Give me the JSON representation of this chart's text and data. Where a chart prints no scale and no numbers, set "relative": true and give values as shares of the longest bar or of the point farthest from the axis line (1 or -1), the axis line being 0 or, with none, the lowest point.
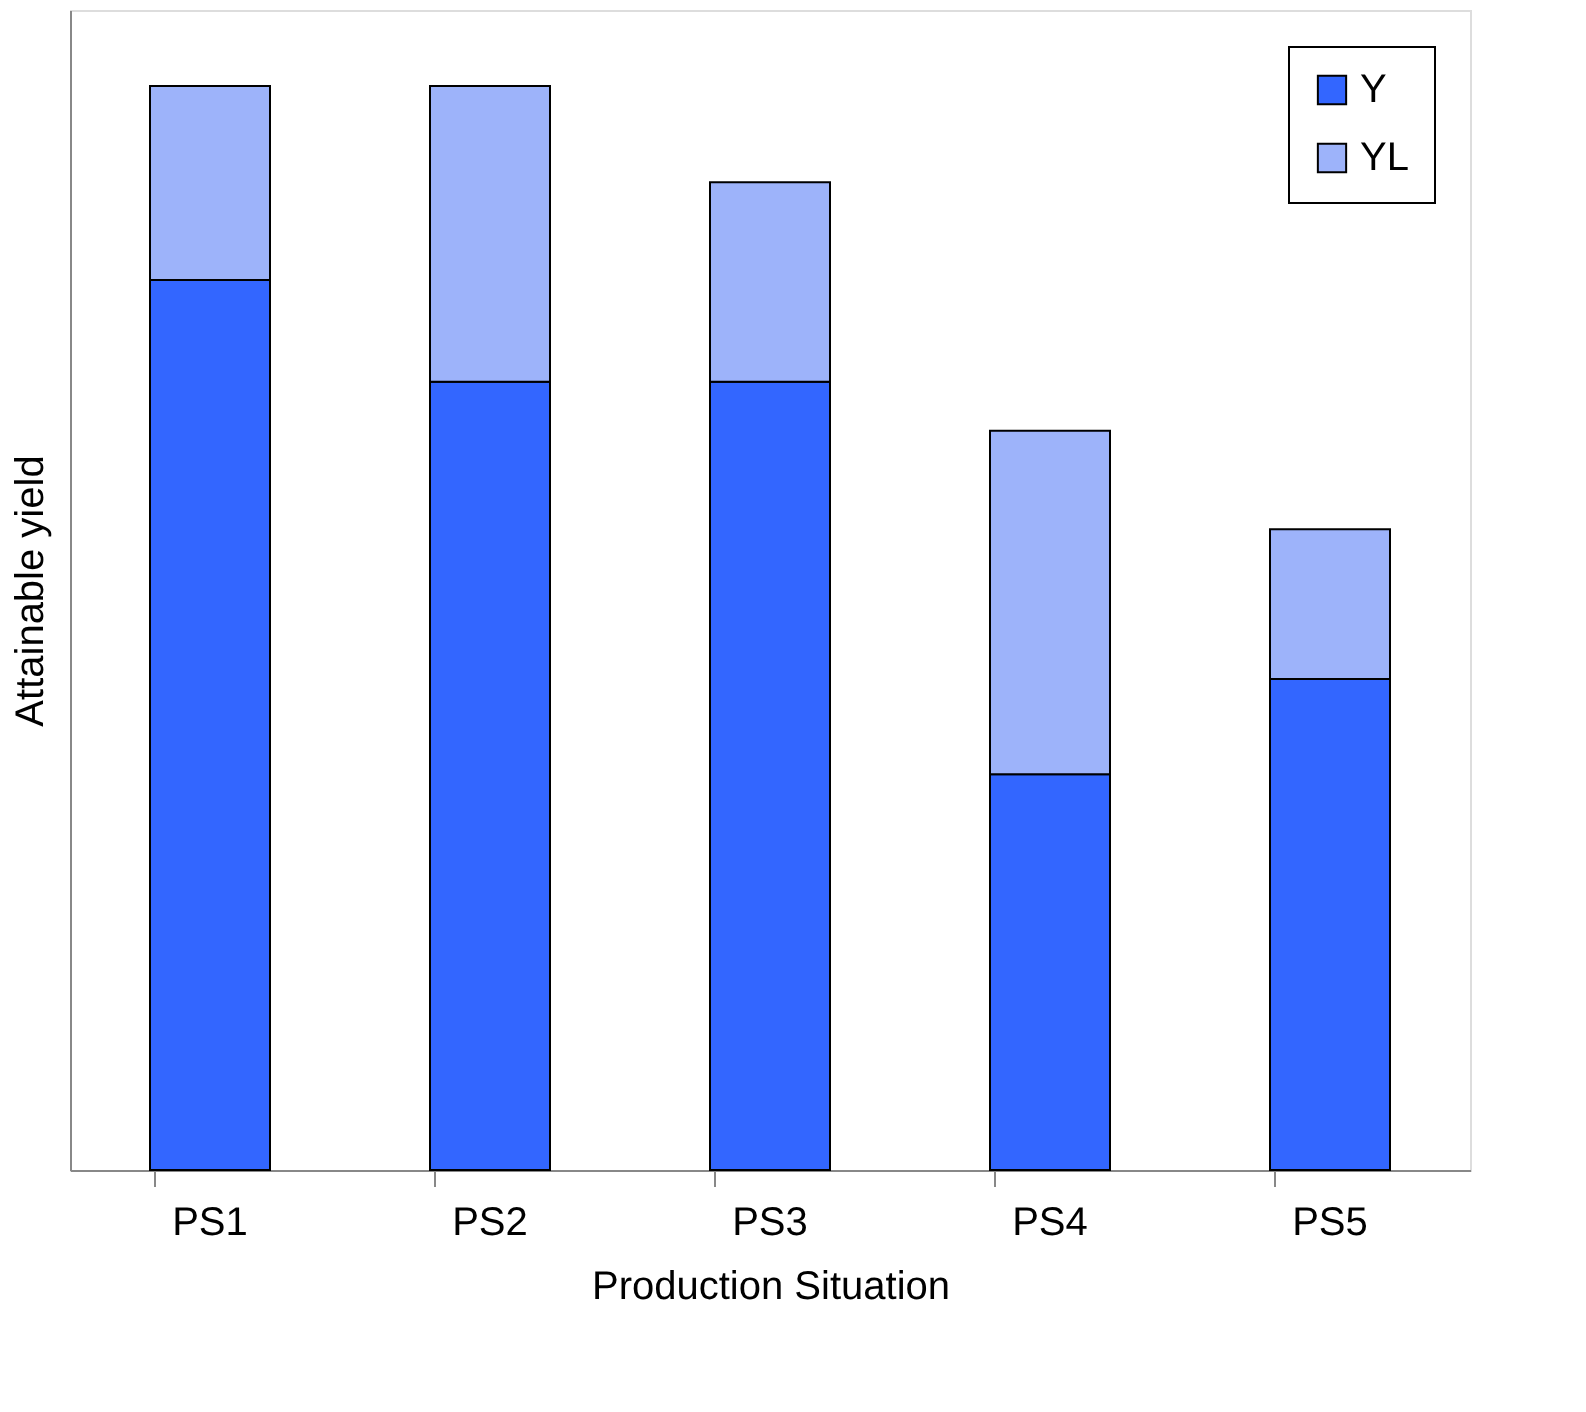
{
  "chart_data": {
    "type": "bar",
    "xlabel": "Production Situation",
    "ylabel": "Attainable yield",
    "categories": [
      "PS1",
      "PS2",
      "PS3",
      "PS4",
      "PS5"
    ],
    "stacked": true,
    "relative": true,
    "legend": "top right",
    "grid": false,
    "series": [
      {
        "name": "Y",
        "color": "#3366ff",
        "values": [
          0.821,
          0.727,
          0.727,
          0.365,
          0.453
        ]
      },
      {
        "name": "YL",
        "color": "#9db3fa",
        "values": [
          0.179,
          0.273,
          0.184,
          0.317,
          0.138
        ]
      }
    ]
  }
}
